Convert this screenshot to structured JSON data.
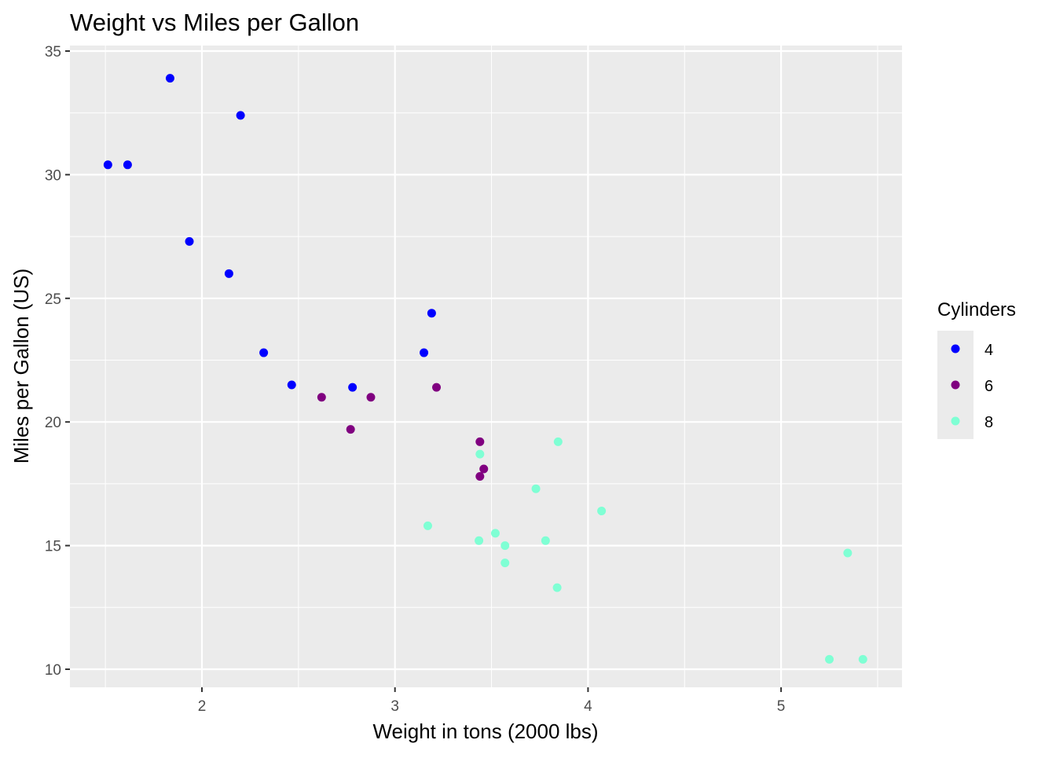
{
  "chart_data": {
    "type": "scatter",
    "title": "Weight vs Miles per Gallon",
    "xlabel": "Weight in tons (2000 lbs)",
    "ylabel": "Miles per Gallon (US)",
    "xlim": [
      1.316,
      5.627
    ],
    "ylim": [
      9.22,
      35.2
    ],
    "x_ticks": [
      2,
      3,
      4,
      5
    ],
    "y_ticks": [
      10,
      15,
      20,
      25,
      30,
      35
    ],
    "grid": true,
    "legend": {
      "title": "Cylinders",
      "placement": "right",
      "entries": [
        {
          "label": "4",
          "color": "#0000FF"
        },
        {
          "label": "6",
          "color": "#800080"
        },
        {
          "label": "8",
          "color": "#7FFFD4"
        }
      ]
    },
    "points": [
      {
        "x": 2.62,
        "y": 21.0,
        "cyl": "6"
      },
      {
        "x": 2.875,
        "y": 21.0,
        "cyl": "6"
      },
      {
        "x": 2.32,
        "y": 22.8,
        "cyl": "4"
      },
      {
        "x": 3.215,
        "y": 21.4,
        "cyl": "6"
      },
      {
        "x": 3.44,
        "y": 18.7,
        "cyl": "8"
      },
      {
        "x": 3.46,
        "y": 18.1,
        "cyl": "6"
      },
      {
        "x": 3.57,
        "y": 14.3,
        "cyl": "8"
      },
      {
        "x": 3.19,
        "y": 24.4,
        "cyl": "4"
      },
      {
        "x": 3.15,
        "y": 22.8,
        "cyl": "4"
      },
      {
        "x": 3.44,
        "y": 19.2,
        "cyl": "6"
      },
      {
        "x": 3.44,
        "y": 17.8,
        "cyl": "6"
      },
      {
        "x": 4.07,
        "y": 16.4,
        "cyl": "8"
      },
      {
        "x": 3.73,
        "y": 17.3,
        "cyl": "8"
      },
      {
        "x": 3.78,
        "y": 15.2,
        "cyl": "8"
      },
      {
        "x": 5.25,
        "y": 10.4,
        "cyl": "8"
      },
      {
        "x": 5.424,
        "y": 10.4,
        "cyl": "8"
      },
      {
        "x": 5.345,
        "y": 14.7,
        "cyl": "8"
      },
      {
        "x": 2.2,
        "y": 32.4,
        "cyl": "4"
      },
      {
        "x": 1.615,
        "y": 30.4,
        "cyl": "4"
      },
      {
        "x": 1.835,
        "y": 33.9,
        "cyl": "4"
      },
      {
        "x": 2.465,
        "y": 21.5,
        "cyl": "4"
      },
      {
        "x": 3.52,
        "y": 15.5,
        "cyl": "8"
      },
      {
        "x": 3.435,
        "y": 15.2,
        "cyl": "8"
      },
      {
        "x": 3.84,
        "y": 13.3,
        "cyl": "8"
      },
      {
        "x": 3.845,
        "y": 19.2,
        "cyl": "8"
      },
      {
        "x": 1.935,
        "y": 27.3,
        "cyl": "4"
      },
      {
        "x": 2.14,
        "y": 26.0,
        "cyl": "4"
      },
      {
        "x": 1.513,
        "y": 30.4,
        "cyl": "4"
      },
      {
        "x": 3.17,
        "y": 15.8,
        "cyl": "8"
      },
      {
        "x": 2.77,
        "y": 19.7,
        "cyl": "6"
      },
      {
        "x": 3.57,
        "y": 15.0,
        "cyl": "8"
      },
      {
        "x": 2.78,
        "y": 21.4,
        "cyl": "4"
      }
    ]
  }
}
